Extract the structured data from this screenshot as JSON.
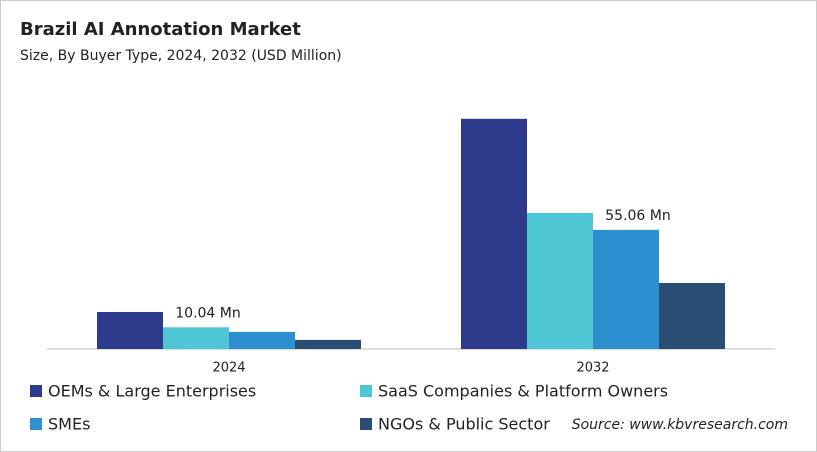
{
  "chart_data": {
    "type": "bar",
    "title": "Brazil AI Annotation Market",
    "subtitle": "Size, By Buyer Type, 2024, 2032 (USD Million)",
    "source": "Source: www.kbvresearch.com",
    "categories": [
      "2024",
      "2032"
    ],
    "ylim": [
      0,
      110
    ],
    "series": [
      {
        "name": "OEMs & Large Enterprises",
        "color": "#2e3a8c",
        "values": [
          17.1,
          106.4
        ]
      },
      {
        "name": "SaaS Companies & Platform Owners",
        "color": "#4fc6d4",
        "values": [
          10.04,
          62.9
        ],
        "value_labels": [
          "10.04 Mn",
          null
        ]
      },
      {
        "name": "SMEs",
        "color": "#2b8fd0",
        "values": [
          7.9,
          55.06
        ],
        "value_labels": [
          null,
          "55.06 Mn"
        ]
      },
      {
        "name": "NGOs & Public Sector",
        "color": "#2a4d73",
        "values": [
          4.2,
          30.5
        ]
      }
    ]
  }
}
